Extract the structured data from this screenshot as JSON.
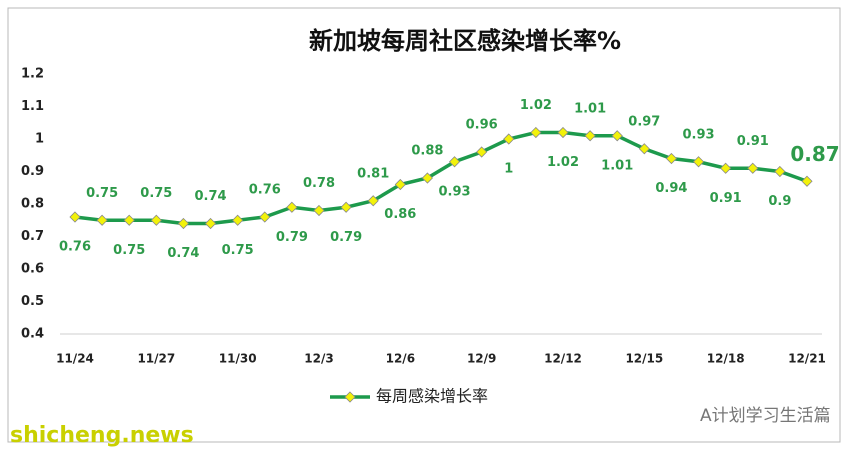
{
  "chart_data": {
    "type": "line",
    "title": "新加坡每周社区感染增长率%",
    "categories": [
      "11/24",
      null,
      null,
      "11/27",
      null,
      null,
      "11/30",
      null,
      null,
      "12/3",
      null,
      null,
      "12/6",
      null,
      null,
      "12/9",
      null,
      null,
      "12/12",
      null,
      null,
      "12/15",
      null,
      null,
      "12/18",
      null,
      null,
      "12/21"
    ],
    "series": [
      {
        "name": "每周感染增长率",
        "color": "#1d9a4c",
        "marker_color": "#f2f20a",
        "values": [
          0.76,
          0.75,
          0.75,
          0.75,
          0.74,
          0.74,
          0.75,
          0.76,
          0.79,
          0.78,
          0.79,
          0.81,
          0.86,
          0.88,
          0.93,
          0.96,
          1,
          1.02,
          1.02,
          1.01,
          1.01,
          0.97,
          0.94,
          0.93,
          0.91,
          0.91,
          0.9,
          0.87
        ]
      }
    ],
    "ylim": [
      0.4,
      1.2
    ],
    "yticks": [
      0.4,
      0.5,
      0.6,
      0.7,
      0.8,
      0.9,
      1,
      1.1,
      1.2
    ],
    "grid": false,
    "legend": "bottom"
  },
  "watermarks": [
    "A计划学习生活篇",
    "shicheng.news"
  ]
}
